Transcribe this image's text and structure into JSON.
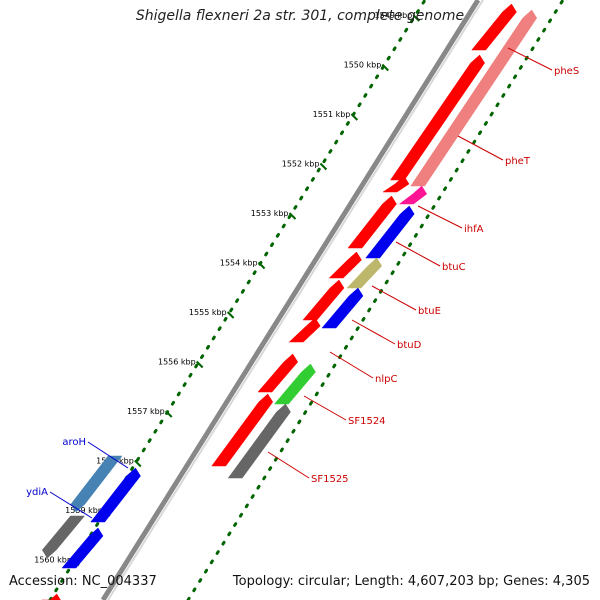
{
  "title": "Shigella flexneri 2a str. 301, complete genome",
  "accession": "Accession: NC_004337",
  "summary": "Topology: circular; Length: 4,607,203 bp; Genes: 4,305",
  "ticks": [
    "1549 kbp",
    "1550 kbp",
    "1551 kbp",
    "1552 kbp",
    "1553 kbp",
    "1554 kbp",
    "1555 kbp",
    "1556 kbp",
    "1557 kbp",
    "1558 kbp",
    "1559 kbp",
    "1560 kbp"
  ],
  "colors": {
    "red": "#ff0000",
    "pink": "#f08080",
    "magenta": "#ff1493",
    "blue": "#0000ee",
    "olive": "#bdb76b",
    "green": "#32cd32",
    "gray": "#666666",
    "steelblue": "#4682b4",
    "backbone": "#888888",
    "dots": "#006400",
    "forward_label": "#cc0000",
    "reverse_label": "#0000cc"
  },
  "genes": [
    {
      "name": "pheS",
      "strand": "forward",
      "color": "red"
    },
    {
      "name": "pheT",
      "strand": "forward",
      "color": "pink"
    },
    {
      "name": "ihfA",
      "strand": "forward",
      "color": "magenta"
    },
    {
      "name": "btuC",
      "strand": "forward",
      "color": "blue"
    },
    {
      "name": "btuE",
      "strand": "forward",
      "color": "olive"
    },
    {
      "name": "btuD",
      "strand": "forward",
      "color": "blue"
    },
    {
      "name": "nlpC",
      "strand": "forward",
      "color": "red"
    },
    {
      "name": "SF1524",
      "strand": "forward",
      "color": "green"
    },
    {
      "name": "SF1525",
      "strand": "forward",
      "color": "gray"
    },
    {
      "name": "aroH",
      "strand": "reverse",
      "color": "steelblue"
    },
    {
      "name": "ydiA",
      "strand": "reverse",
      "color": "gray"
    }
  ]
}
